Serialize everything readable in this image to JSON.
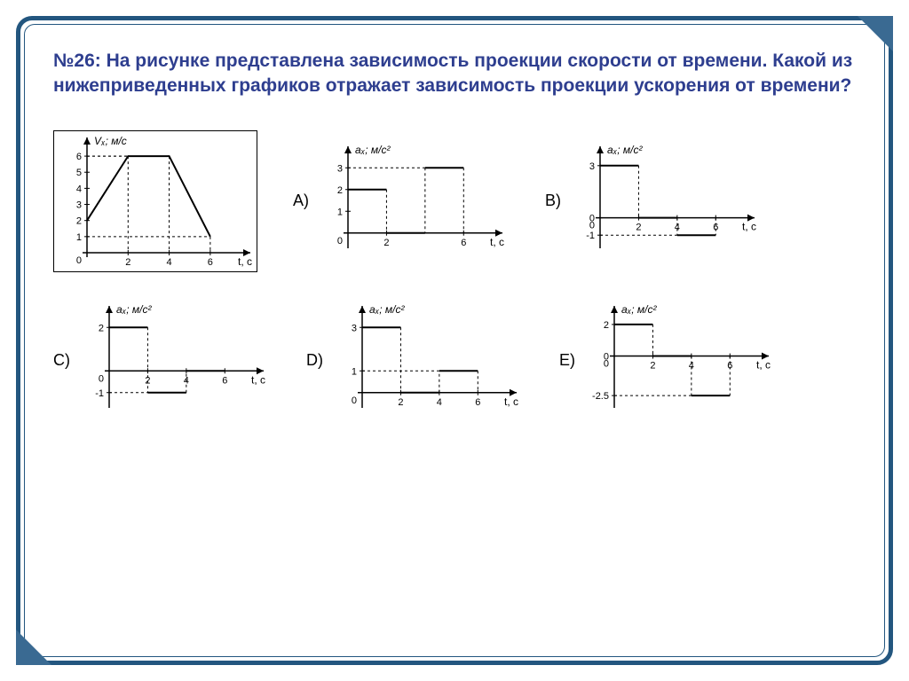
{
  "question": "№26: На рисунке представлена зависимость проекции скорости от времени. Какой из нижеприведенных графиков отражает зависимость проекции ускорения от времени?",
  "main_graph": {
    "type": "line",
    "ylabel": "Vₓ; м/с",
    "xlabel": "t, с",
    "xlim": [
      0,
      7
    ],
    "ylim": [
      0,
      6.5
    ],
    "xticks": [
      2,
      4,
      6
    ],
    "yticks": [
      1,
      2,
      3,
      4,
      5,
      6
    ],
    "points": [
      [
        0,
        2
      ],
      [
        2,
        6
      ],
      [
        4,
        6
      ],
      [
        6,
        1
      ]
    ],
    "axis_color": "#000000",
    "line_color": "#000000",
    "dash_color": "#000000",
    "border_color": "#000000",
    "line_width": 2
  },
  "options": {
    "A": {
      "type": "step",
      "ylabel": "aₓ; м/с²",
      "xlabel": "t, с",
      "xlim": [
        0,
        7
      ],
      "ylim": [
        -0.5,
        3.5
      ],
      "xticks": [
        2,
        6
      ],
      "yticks": [
        1,
        2,
        3
      ],
      "segments": [
        [
          0,
          2,
          2,
          2
        ],
        [
          2,
          0,
          4,
          0
        ],
        [
          4,
          3,
          6,
          3
        ]
      ],
      "dashes": [
        [
          2,
          2,
          2,
          0
        ],
        [
          4,
          3,
          4,
          0
        ],
        [
          6,
          3,
          6,
          0
        ],
        [
          0,
          3,
          6,
          3
        ]
      ],
      "line_color": "#000000",
      "line_width": 2
    },
    "B": {
      "type": "step",
      "ylabel": "aₓ; м/с²",
      "xlabel": "t, с",
      "xlim": [
        0,
        7
      ],
      "ylim": [
        -1.5,
        3.5
      ],
      "xticks": [
        2,
        4,
        6
      ],
      "yticks": [
        -1,
        0,
        3
      ],
      "segments": [
        [
          0,
          3,
          2,
          3
        ],
        [
          2,
          0,
          4,
          0
        ],
        [
          4,
          -1,
          6,
          -1
        ]
      ],
      "dashes": [
        [
          2,
          3,
          2,
          0
        ],
        [
          4,
          0,
          4,
          -1
        ],
        [
          6,
          0,
          6,
          -1
        ],
        [
          0,
          -1,
          6,
          -1
        ]
      ],
      "line_color": "#000000",
      "line_width": 2
    },
    "C": {
      "type": "step",
      "ylabel": "aₓ; м/с²",
      "xlabel": "t, с",
      "xlim": [
        0,
        7
      ],
      "ylim": [
        -1.5,
        2.5
      ],
      "xticks": [
        2,
        4,
        6
      ],
      "yticks": [
        -1,
        2
      ],
      "segments": [
        [
          0,
          2,
          2,
          2
        ],
        [
          2,
          -1,
          4,
          -1
        ],
        [
          4,
          0,
          6,
          0
        ]
      ],
      "dashes": [
        [
          2,
          2,
          2,
          -1
        ],
        [
          4,
          -1,
          4,
          0
        ],
        [
          0,
          -1,
          4,
          -1
        ]
      ],
      "line_color": "#000000",
      "line_width": 2
    },
    "D": {
      "type": "step",
      "ylabel": "aₓ; м/с²",
      "xlabel": "t, с",
      "xlim": [
        0,
        7
      ],
      "ylim": [
        -0.5,
        3.5
      ],
      "xticks": [
        2,
        4,
        6
      ],
      "yticks": [
        1,
        3
      ],
      "segments": [
        [
          0,
          3,
          2,
          3
        ],
        [
          2,
          0,
          4,
          0
        ],
        [
          4,
          1,
          6,
          1
        ]
      ],
      "dashes": [
        [
          2,
          3,
          2,
          0
        ],
        [
          4,
          0,
          4,
          1
        ],
        [
          6,
          1,
          6,
          0
        ],
        [
          0,
          1,
          6,
          1
        ]
      ],
      "line_color": "#000000",
      "line_width": 2
    },
    "E": {
      "type": "step",
      "ylabel": "aₓ; м/с²",
      "xlabel": "t, с",
      "xlim": [
        0,
        7
      ],
      "ylim": [
        -3,
        2.5
      ],
      "xticks": [
        2,
        4,
        6
      ],
      "yticks": [
        -2.5,
        0,
        2
      ],
      "segments": [
        [
          0,
          2,
          2,
          2
        ],
        [
          2,
          0,
          4,
          0
        ],
        [
          4,
          -2.5,
          6,
          -2.5
        ]
      ],
      "dashes": [
        [
          2,
          2,
          2,
          0
        ],
        [
          4,
          0,
          4,
          -2.5
        ],
        [
          6,
          0,
          6,
          -2.5
        ],
        [
          0,
          -2.5,
          6,
          -2.5
        ]
      ],
      "line_color": "#000000",
      "line_width": 2
    }
  },
  "layout": {
    "main_w": 230,
    "main_h": 160,
    "opt_w": 220,
    "opt_h": 140,
    "frame_color": "#23567f",
    "text_color": "#2e3e8f",
    "background": "#ffffff"
  }
}
